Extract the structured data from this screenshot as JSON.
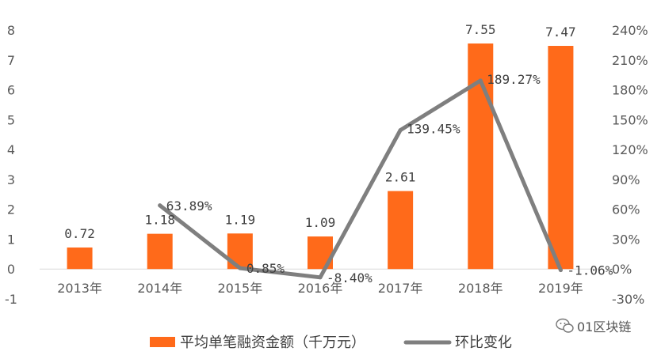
{
  "chart_data": {
    "type": "bar",
    "categories": [
      "2013年",
      "2014年",
      "2015年",
      "2016年",
      "2017年",
      "2018年",
      "2019年"
    ],
    "series": [
      {
        "name": "平均单笔融资金额（千万元）",
        "type": "bar",
        "axis": "left",
        "color": "#FF6A1A",
        "values": [
          0.72,
          1.18,
          1.19,
          1.09,
          2.61,
          7.55,
          7.47
        ],
        "labels": [
          "0.72",
          "1.18",
          "1.19",
          "1.09",
          "2.61",
          "7.55",
          "7.47"
        ]
      },
      {
        "name": "环比变化",
        "type": "line",
        "axis": "right",
        "color": "#7F7F7F",
        "values": [
          null,
          63.89,
          0.85,
          -8.4,
          139.45,
          189.27,
          -1.06
        ],
        "labels": [
          null,
          "63.89%",
          "0.85%",
          "-8.40%",
          "139.45%",
          "189.27%",
          "-1.06%"
        ]
      }
    ],
    "ylim_left": [
      -1,
      8
    ],
    "yticks_left": [
      "-1",
      "0",
      "1",
      "2",
      "3",
      "4",
      "5",
      "6",
      "7",
      "8"
    ],
    "ylim_right": [
      -30,
      240
    ],
    "yticks_right": [
      "-30%",
      "0%",
      "30%",
      "60%",
      "90%",
      "120%",
      "150%",
      "180%",
      "210%",
      "240%"
    ],
    "title": "",
    "xlabel": "",
    "ylabel": "",
    "grid": false,
    "legend_position": "bottom"
  },
  "watermark": {
    "text": "01区块链",
    "icon": "wechat-icon"
  }
}
